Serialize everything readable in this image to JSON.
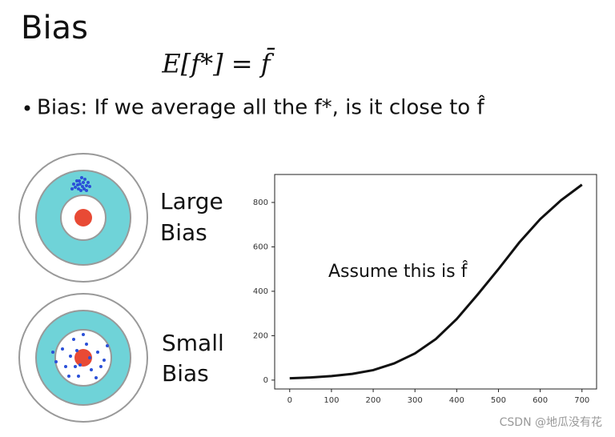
{
  "slide": {
    "title": "Bias",
    "formula": "E[f*] = f̄",
    "bullet": "Bias: If we average all the f*, is it close to f̂",
    "targets": [
      {
        "label_line1": "Large",
        "label_line2": "Bias"
      },
      {
        "label_line1": "Small",
        "label_line2": "Bias"
      }
    ],
    "watermark": "CSDN @地瓜没有花"
  },
  "chart_data": {
    "type": "line",
    "annotation": "Assume this is f̂",
    "x": [
      0,
      50,
      100,
      150,
      200,
      250,
      300,
      350,
      400,
      450,
      500,
      550,
      600,
      650,
      700
    ],
    "values": [
      8,
      12,
      18,
      28,
      45,
      75,
      120,
      185,
      275,
      385,
      500,
      620,
      725,
      810,
      880
    ],
    "color": "#111111",
    "xlim": [
      -36,
      735
    ],
    "ylim": [
      -40,
      926
    ],
    "xticks": [
      0,
      100,
      200,
      300,
      400,
      500,
      600,
      700
    ],
    "yticks": [
      0,
      200,
      400,
      600,
      800
    ]
  }
}
